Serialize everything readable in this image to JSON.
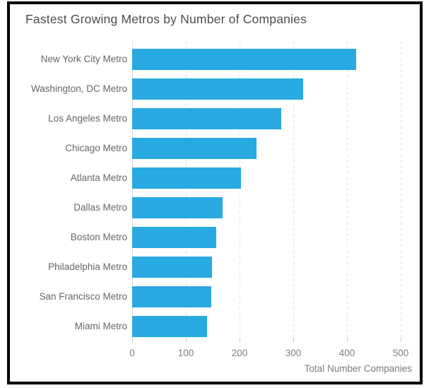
{
  "window": {
    "background": "#FFFFFF",
    "frame_border_color": "#000000"
  },
  "chart_data": {
    "type": "bar",
    "orientation": "horizontal",
    "title": "Fastest Growing Metros by Number of Companies",
    "categories": [
      "New York City Metro",
      "Washington, DC Metro",
      "Los Angeles Metro",
      "Chicago Metro",
      "Atlanta Metro",
      "Dallas Metro",
      "Boston Metro",
      "Philadelphia Metro",
      "San Francisco Metro",
      "Miami Metro"
    ],
    "values": [
      417,
      319,
      278,
      231,
      203,
      169,
      156,
      149,
      148,
      140
    ],
    "xlabel": "Total Number Companies",
    "ylabel": "",
    "x_tick_labels": [
      "0",
      "100",
      "200",
      "300",
      "400",
      "500"
    ],
    "x_tick_values": [
      0,
      100,
      200,
      300,
      400,
      500
    ],
    "xlim": [
      0,
      520
    ],
    "grid": "vertical dashed gridlines",
    "legend_position": "none",
    "colors": {
      "bar": "#29A9E1",
      "title_text": "#4D4D4D",
      "category_text": "#666666",
      "tick_text": "#808080",
      "axis_label_text": "#7A7A7A",
      "gridline": "#E2E2E2",
      "zero_gridline": "#DDDDDD",
      "tick_mark": "#C9C9C9"
    }
  }
}
